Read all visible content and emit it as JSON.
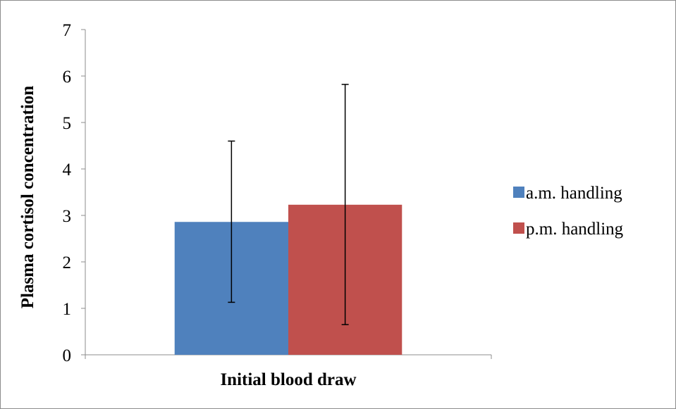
{
  "chart_data": {
    "type": "bar",
    "title": "",
    "xlabel": "",
    "ylabel": "Plasma cortisol concentration",
    "categories": [
      "Initial blood draw"
    ],
    "series": [
      {
        "name": "a.m. handling",
        "values": [
          2.86
        ],
        "error_low": [
          1.13
        ],
        "error_high": [
          4.6
        ],
        "color": "#4f81bd"
      },
      {
        "name": "p.m. handling",
        "values": [
          3.23
        ],
        "error_low": [
          0.65
        ],
        "error_high": [
          5.82
        ],
        "color": "#c0504d"
      }
    ],
    "ylim": [
      0,
      7
    ],
    "yticks": [
      0,
      1,
      2,
      3,
      4,
      5,
      6,
      7
    ],
    "grid": false,
    "legend_position": "right"
  }
}
